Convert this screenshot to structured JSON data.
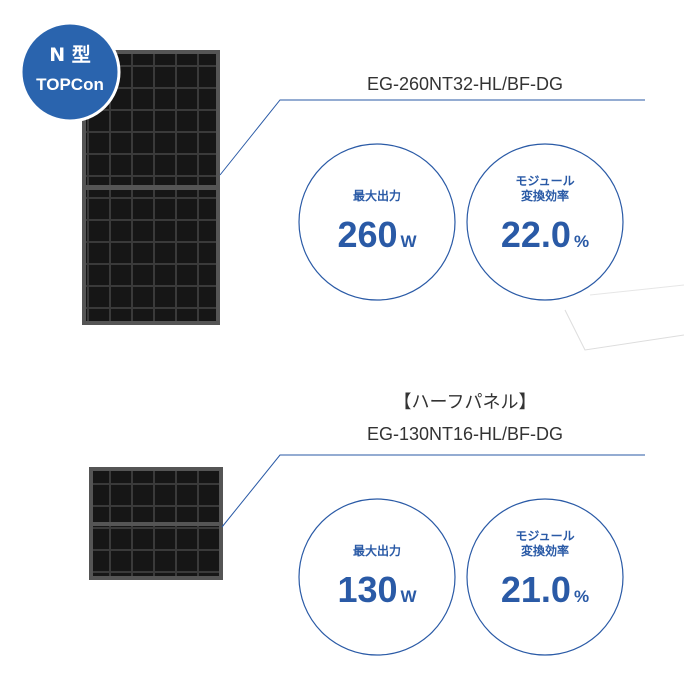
{
  "badge": {
    "lines": [
      "N 型",
      "TOPCon"
    ]
  },
  "products": [
    {
      "subtitle": null,
      "model": "EG-260NT32-HL/BF-DG",
      "specs": [
        {
          "label_lines": [
            "最大出力"
          ],
          "value": "260",
          "unit": "W"
        },
        {
          "label_lines": [
            "モジュール",
            "変換効率"
          ],
          "value": "22.0",
          "unit": "%"
        }
      ]
    },
    {
      "subtitle": "【ハーフパネル】",
      "model": "EG-130NT16-HL/BF-DG",
      "specs": [
        {
          "label_lines": [
            "最大出力"
          ],
          "value": "130",
          "unit": "W"
        },
        {
          "label_lines": [
            "モジュール",
            "変換効率"
          ],
          "value": "21.0",
          "unit": "%"
        }
      ]
    }
  ]
}
